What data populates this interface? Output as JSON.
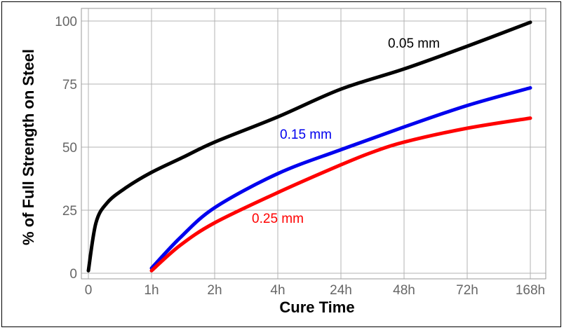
{
  "chart_data": {
    "type": "line",
    "xlabel": "Cure Time",
    "ylabel": "% of Full Strength on Steel",
    "ylim": [
      0,
      100
    ],
    "y_ticks": [
      "0",
      "25",
      "50",
      "75",
      "100"
    ],
    "x_ticks": [
      "0",
      "1h",
      "2h",
      "4h",
      "24h",
      "48h",
      "72h",
      "168h"
    ],
    "grid": true,
    "series": [
      {
        "name": "0.05 mm",
        "color": "#000000",
        "points": [
          {
            "x": "0",
            "y": 1
          },
          {
            "x": "0",
            "y": 20,
            "pos": 0.12
          },
          {
            "x": "0",
            "y": 28,
            "pos": 0.3
          },
          {
            "x": "0",
            "y": 34,
            "pos": 0.6
          },
          {
            "x": "1h",
            "y": 40
          },
          {
            "x": "1h",
            "y": 46,
            "pos": 0.5
          },
          {
            "x": "2h",
            "y": 52
          },
          {
            "x": "4h",
            "y": 62
          },
          {
            "x": "24h",
            "y": 73
          },
          {
            "x": "48h",
            "y": 81
          },
          {
            "x": "72h",
            "y": 90
          },
          {
            "x": "168h",
            "y": 99.5
          }
        ]
      },
      {
        "name": "0.15 mm",
        "color": "#0000ee",
        "points": [
          {
            "x": "1h",
            "y": 2
          },
          {
            "x": "1h",
            "y": 14,
            "pos": 0.45
          },
          {
            "x": "2h",
            "y": 26
          },
          {
            "x": "4h",
            "y": 39.5
          },
          {
            "x": "24h",
            "y": 49
          },
          {
            "x": "48h",
            "y": 58
          },
          {
            "x": "72h",
            "y": 66.5
          },
          {
            "x": "168h",
            "y": 73.5
          }
        ]
      },
      {
        "name": "0.25 mm",
        "color": "#ff0000",
        "points": [
          {
            "x": "1h",
            "y": 1
          },
          {
            "x": "1h",
            "y": 11,
            "pos": 0.45
          },
          {
            "x": "2h",
            "y": 20
          },
          {
            "x": "4h",
            "y": 32
          },
          {
            "x": "24h",
            "y": 43
          },
          {
            "x": "24h",
            "y": 48,
            "pos": 0.5
          },
          {
            "x": "48h",
            "y": 52
          },
          {
            "x": "72h",
            "y": 57.5
          },
          {
            "x": "168h",
            "y": 61.5
          }
        ]
      }
    ]
  }
}
